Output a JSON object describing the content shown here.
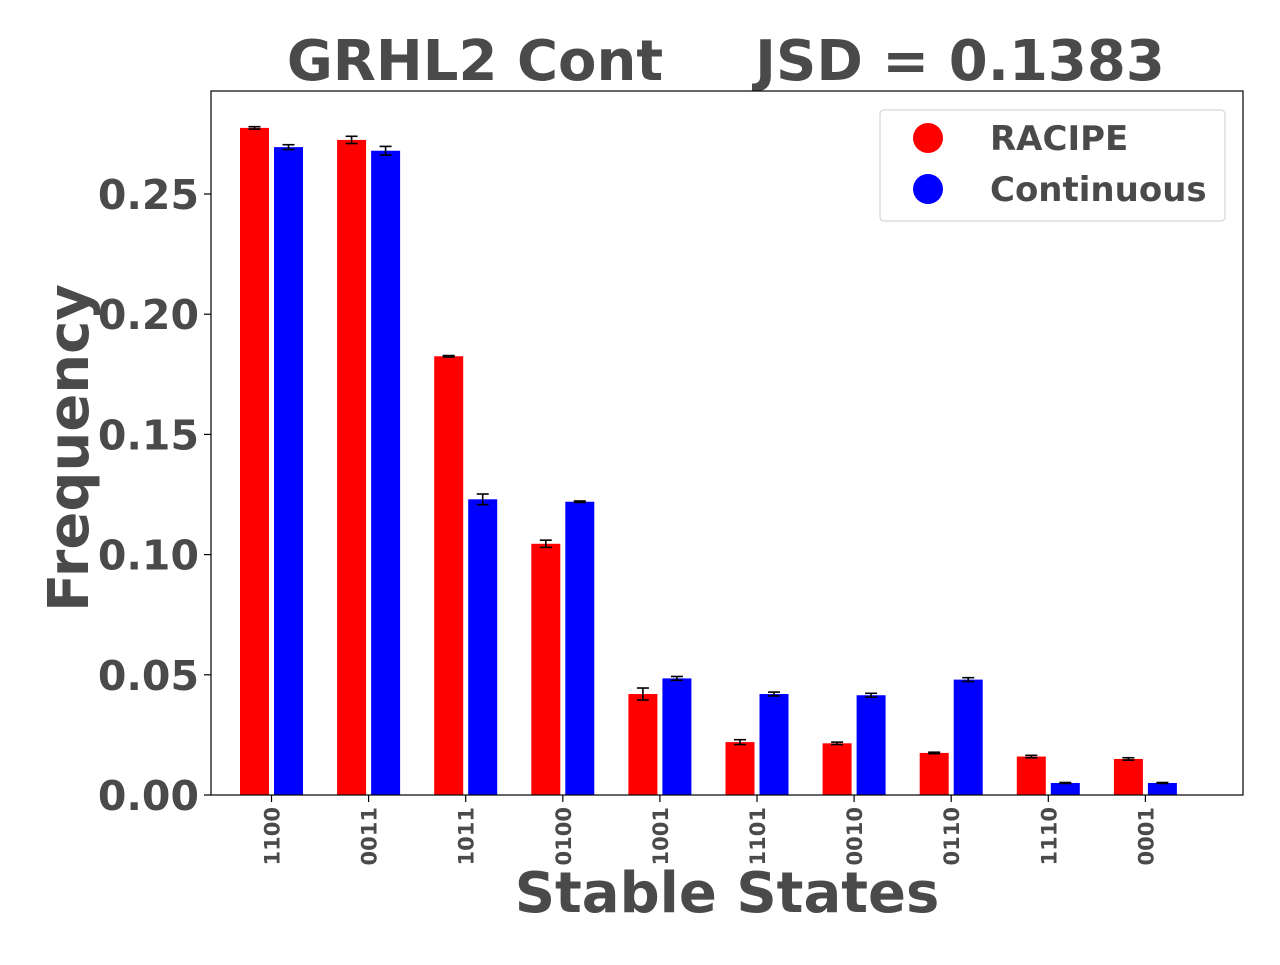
{
  "chart_data": {
    "type": "bar",
    "title_left": "GRHL2 Cont",
    "title_right": "JSD = 0.1383",
    "xlabel": "Stable States",
    "ylabel": "Frequency",
    "categories": [
      "1100",
      "0011",
      "1011",
      "0100",
      "1001",
      "1101",
      "0010",
      "0110",
      "1110",
      "0001"
    ],
    "ylim": [
      0,
      0.29
    ],
    "yticks": [
      "0.00",
      "0.05",
      "0.10",
      "0.15",
      "0.20",
      "0.25"
    ],
    "grid": false,
    "legend_position": "top-right",
    "series": [
      {
        "name": "RACIPE",
        "color": "#ff0000",
        "values": [
          0.2775,
          0.2725,
          0.1825,
          0.1045,
          0.042,
          0.022,
          0.0215,
          0.0175,
          0.016,
          0.015
        ],
        "errors": [
          0.0005,
          0.0015,
          0.0003,
          0.0015,
          0.0025,
          0.001,
          0.0005,
          0.0003,
          0.0005,
          0.0005
        ]
      },
      {
        "name": "Continuous",
        "color": "#0000ff",
        "values": [
          0.2695,
          0.268,
          0.123,
          0.122,
          0.0485,
          0.042,
          0.0415,
          0.048,
          0.005,
          0.005
        ],
        "errors": [
          0.001,
          0.0018,
          0.0022,
          0.0003,
          0.0008,
          0.0008,
          0.0008,
          0.0008,
          0.0002,
          0.0002
        ]
      }
    ]
  }
}
